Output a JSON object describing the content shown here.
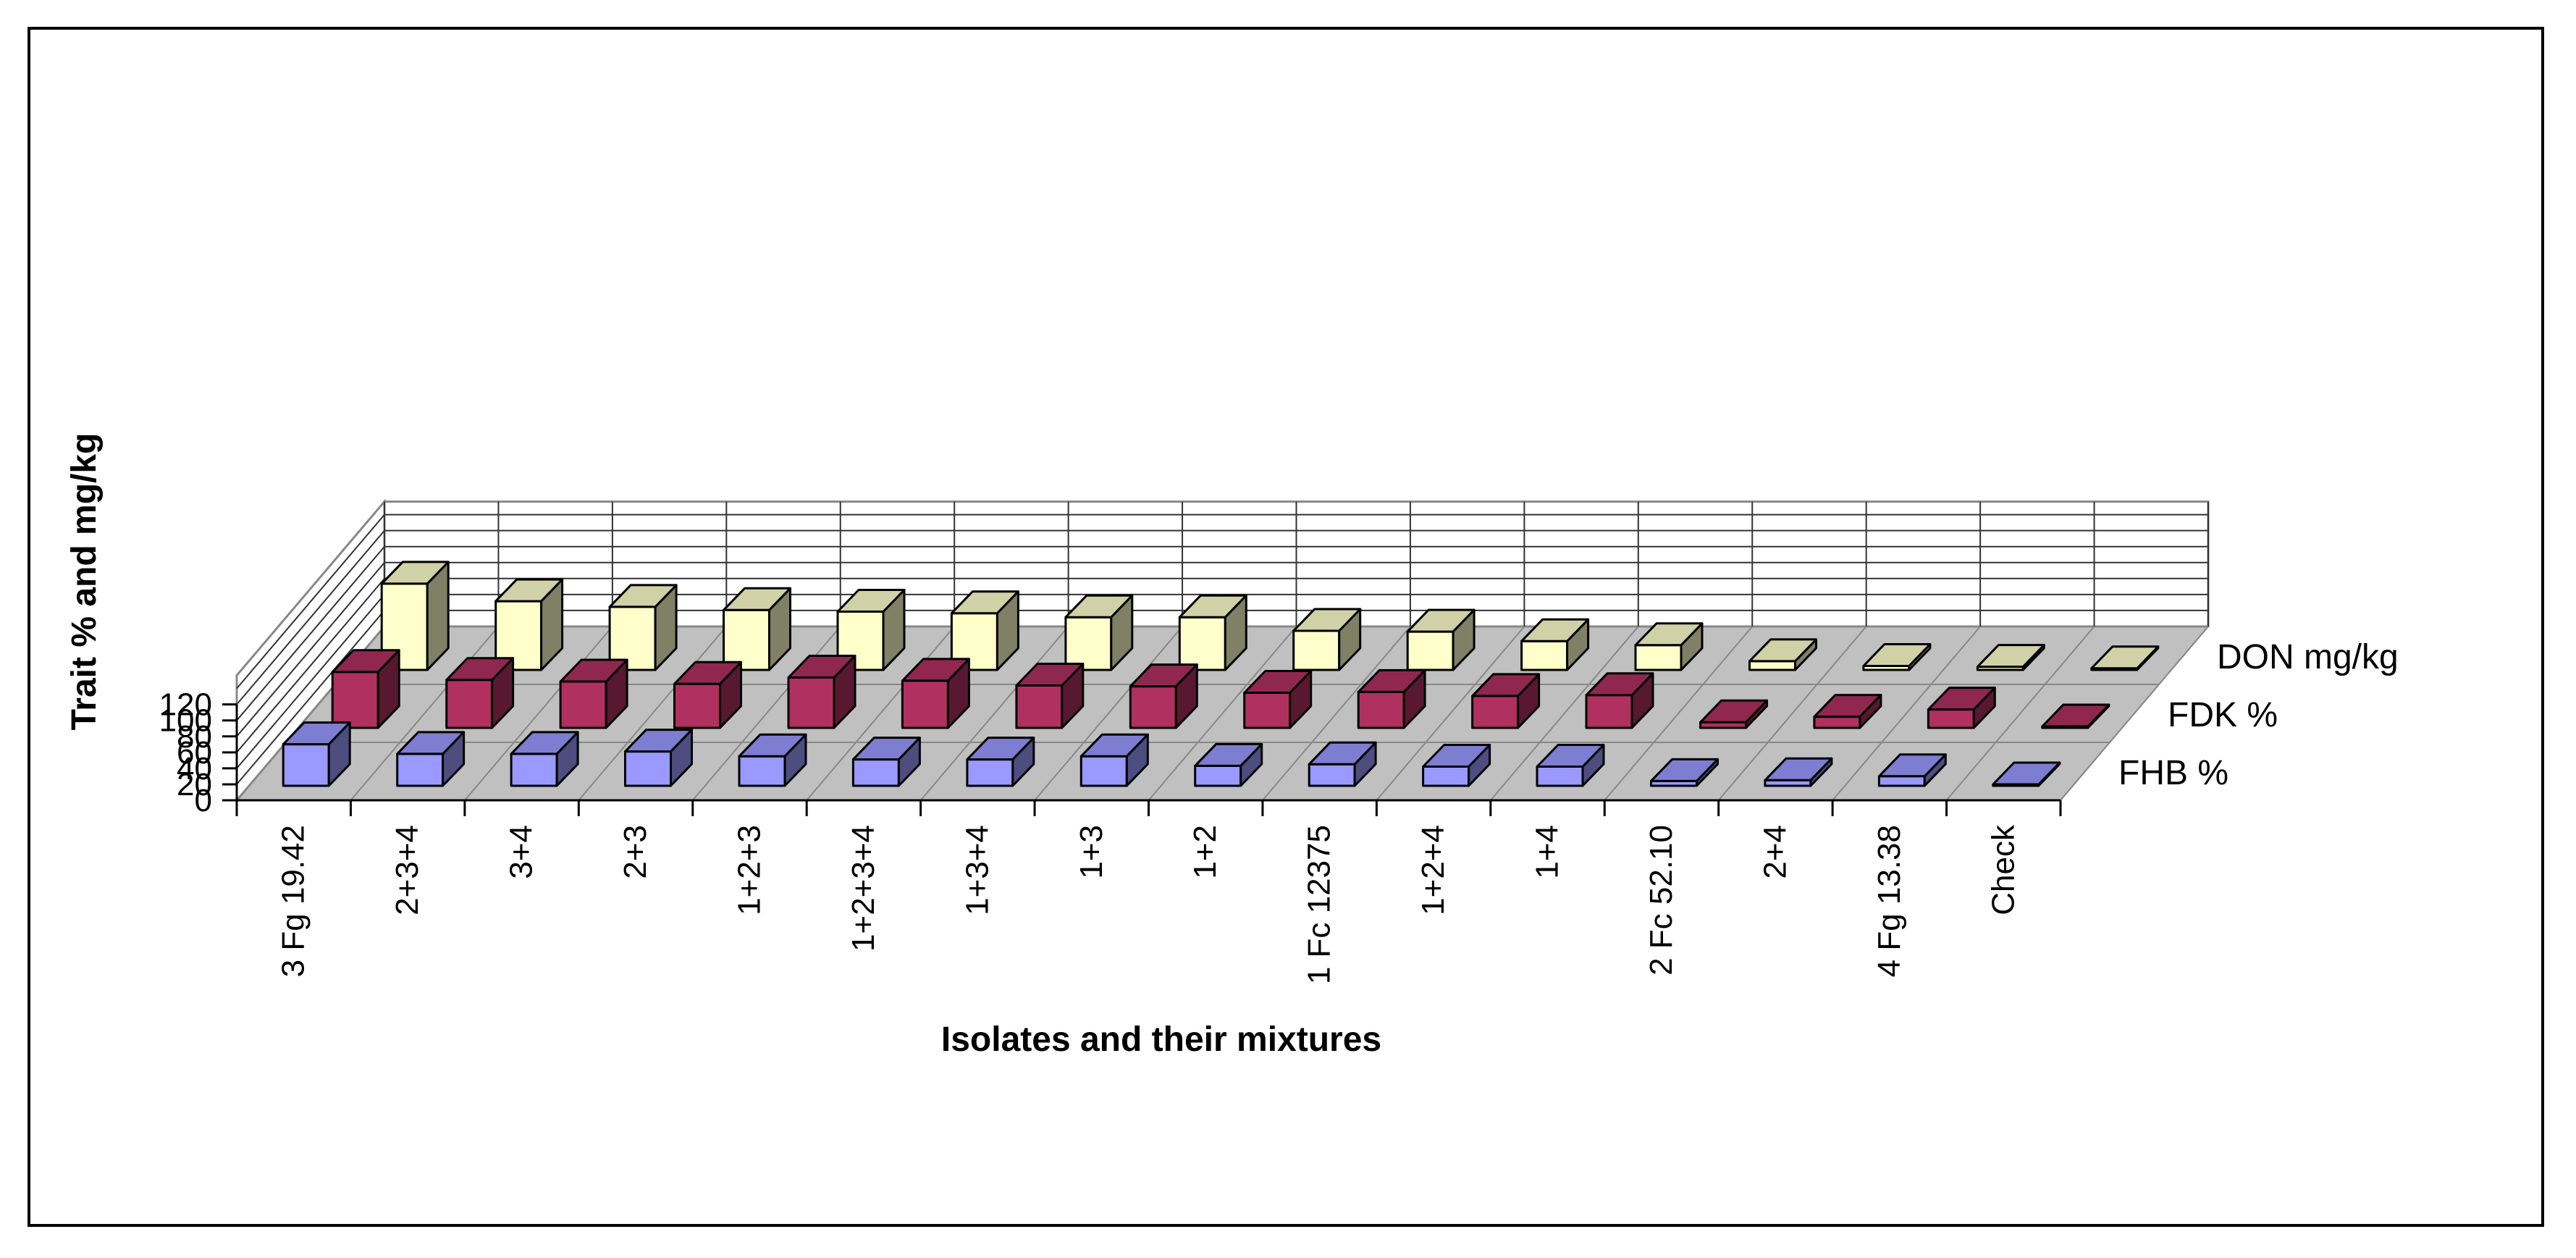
{
  "chart_data": {
    "type": "bar",
    "subtype": "3d-clustered-depth",
    "title": "",
    "xlabel": "Isolates and their mixtures",
    "ylabel": "Trait % and mg/kg",
    "ylim": [
      0,
      120
    ],
    "yticks": [
      "0",
      "20",
      "40",
      "60",
      "80",
      "100",
      "120"
    ],
    "grid": true,
    "legend_position": "right",
    "categories": [
      "3 Fg 19.42",
      "2+3+4",
      "3+4",
      "2+3",
      "1+2+3",
      "1+2+3+4",
      "1+3+4",
      "1+3",
      "1+2",
      "1 Fc 12375",
      "1+2+4",
      "1+4",
      "2 Fc 52.10",
      "2+4",
      "4 Fg 13.38",
      "Check"
    ],
    "series": [
      {
        "name": "FHB %",
        "color": "#9999ff",
        "values": [
          52,
          40,
          40,
          43,
          37,
          33,
          33,
          37,
          25,
          27,
          24,
          24,
          6,
          7,
          12,
          0.5
        ]
      },
      {
        "name": "FDK %",
        "color": "#b03060",
        "values": [
          70,
          60,
          58,
          55,
          63,
          59,
          53,
          52,
          44,
          45,
          40,
          41,
          7,
          14,
          23,
          0.5
        ]
      },
      {
        "name": "DON mg/kg",
        "color": "#ffffcc",
        "values": [
          108,
          86,
          79,
          75,
          73,
          71,
          66,
          66,
          49,
          48,
          36,
          31,
          11,
          5,
          4,
          2
        ]
      }
    ]
  }
}
